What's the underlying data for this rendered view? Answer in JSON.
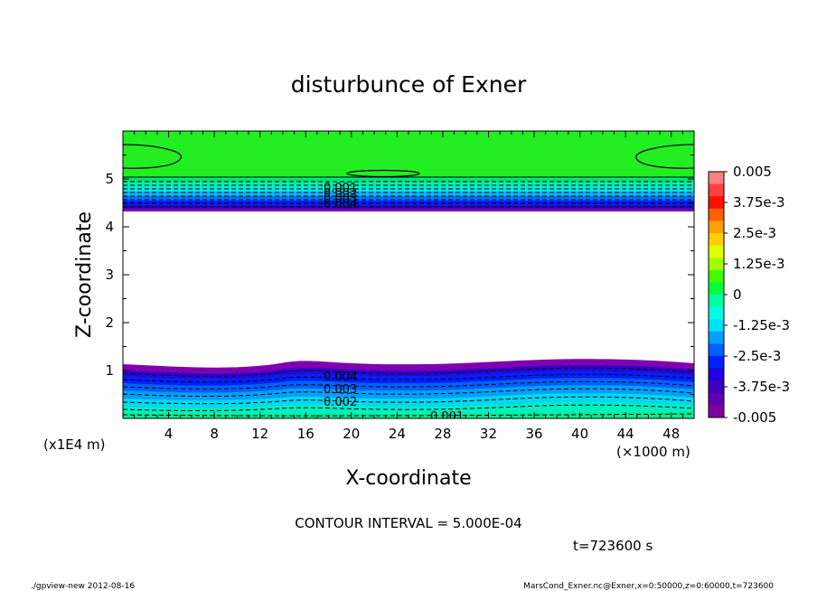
{
  "chart_data": {
    "type": "heatmap",
    "title": "disturbunce of Exner",
    "xlabel": "X-coordinate",
    "ylabel": "Z-coordinate",
    "x_unit": "(×1000 m)",
    "y_unit": "(x1E4 m)",
    "xlim": [
      0,
      50
    ],
    "ylim": [
      0,
      6
    ],
    "x_ticks": [
      4,
      8,
      12,
      16,
      20,
      24,
      28,
      32,
      36,
      40,
      44,
      48
    ],
    "y_ticks": [
      1,
      2,
      3,
      4,
      5
    ],
    "contour_interval": "CONTOUR INTERVAL = 5.000E-04",
    "time": "t=723600 s",
    "contour_labels_top": [
      "0.001",
      "0.002",
      "0.003",
      "0.004"
    ],
    "contour_labels_bottom": [
      "0.004",
      "0.003",
      "0.002",
      "0.001"
    ],
    "colorbar": {
      "labels": [
        "0.005",
        "3.75e-3",
        "2.5e-3",
        "1.25e-3",
        "0",
        "-1.25e-3",
        "-2.5e-3",
        "-3.75e-3",
        "-0.005"
      ],
      "range": [
        -0.005,
        0.005
      ],
      "colors": [
        "#ff8080",
        "#ff4040",
        "#ff1000",
        "#ff6000",
        "#ffa000",
        "#ffd000",
        "#e0ff00",
        "#a0ff00",
        "#40ff00",
        "#00ff40",
        "#00ffa0",
        "#00ffe0",
        "#00e0ff",
        "#00a0ff",
        "#0060ff",
        "#0020ff",
        "#2000e0",
        "#4000c0",
        "#6000b0",
        "#8000a0"
      ]
    },
    "regions": [
      {
        "name": "upper band",
        "z_range": [
          4.35,
          6.0
        ],
        "value_range": [
          -0.005,
          0.0
        ]
      },
      {
        "name": "blank middle",
        "z_range": [
          1.1,
          4.35
        ],
        "value_range": null
      },
      {
        "name": "lower band",
        "z_range": [
          0.0,
          1.1
        ],
        "value_range": [
          -0.005,
          -0.0005
        ]
      }
    ]
  },
  "footer": {
    "left": "./gpview-new  2012-08-16",
    "right": "MarsCond_Exner.nc@Exner,x=0:50000,z=0:60000,t=723600"
  }
}
